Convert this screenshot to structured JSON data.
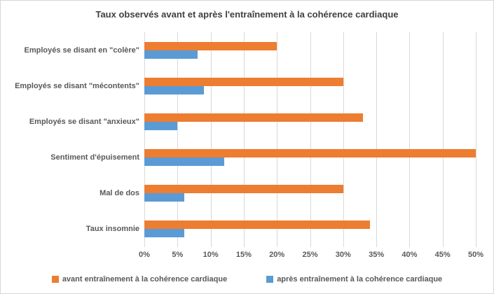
{
  "title": "Taux observés avant et après l'entraînement à la cohérence cardiaque",
  "colors": {
    "series_avant": "#ED7D31",
    "series_apres": "#5B9BD5",
    "gridline": "#D9D9D9",
    "text": "#595959",
    "frame_border": "#D7D7D7"
  },
  "chart_data": {
    "type": "bar",
    "orientation": "horizontal",
    "title": "Taux observés avant et après l'entraînement à la cohérence cardiaque",
    "categories": [
      "Employés se disant en \"colère\"",
      "Employés se disant \"mécontents\"",
      "Employés se disant \"anxieux\"",
      "Sentiment d'épuisement",
      "Mal de dos",
      "Taux insomnie"
    ],
    "series": [
      {
        "name": "avant entraînement à la cohérence cardiaque",
        "color": "#ED7D31",
        "values": [
          20,
          30,
          33,
          50,
          30,
          34
        ]
      },
      {
        "name": "après entraînement à la cohérence cardiaque",
        "color": "#5B9BD5",
        "values": [
          8,
          9,
          5,
          12,
          6,
          6
        ]
      }
    ],
    "value_unit": "%",
    "xlim": [
      0,
      50
    ],
    "x_tick_step": 5,
    "x_tick_labels": [
      "0%",
      "5%",
      "10%",
      "15%",
      "20%",
      "25%",
      "30%",
      "35%",
      "40%",
      "45%",
      "50%"
    ],
    "grid": true,
    "legend_position": "bottom"
  }
}
